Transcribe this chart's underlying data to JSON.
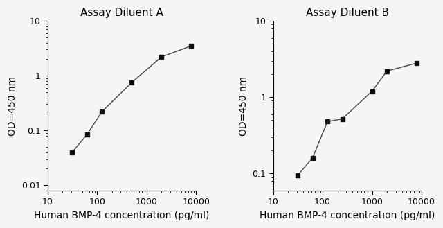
{
  "plot_A": {
    "title": "Assay Diluent A",
    "x": [
      31.25,
      62.5,
      125,
      500,
      2000,
      8000
    ],
    "y": [
      0.04,
      0.085,
      0.22,
      0.75,
      2.2,
      3.5
    ],
    "xlim": [
      10,
      10000
    ],
    "ylim": [
      0.008,
      10
    ],
    "yticks": [
      0.01,
      0.1,
      1,
      10
    ],
    "ytick_labels": [
      "0.01",
      "0.1",
      "1",
      "10"
    ],
    "xticks": [
      10,
      100,
      1000,
      10000
    ],
    "xtick_labels": [
      "10",
      "100",
      "1000",
      "10000"
    ],
    "xlabel": "Human BMP-4 concentration (pg/ml)",
    "ylabel": "OD=450 nm"
  },
  "plot_B": {
    "title": "Assay Diluent B",
    "x": [
      31.25,
      62.5,
      125,
      250,
      1000,
      2000,
      8000
    ],
    "y": [
      0.095,
      0.16,
      0.48,
      0.52,
      1.2,
      2.2,
      2.8
    ],
    "xlim": [
      10,
      10000
    ],
    "ylim": [
      0.06,
      10
    ],
    "yticks": [
      0.1,
      1,
      10
    ],
    "ytick_labels": [
      "0.1",
      "1",
      "10"
    ],
    "xticks": [
      10,
      100,
      1000,
      10000
    ],
    "xtick_labels": [
      "10",
      "100",
      "1000",
      "10000"
    ],
    "xlabel": "Human BMP-4 concentration (pg/ml)",
    "ylabel": "OD=450 nm"
  },
  "line_color": "#444444",
  "marker": "s",
  "marker_size": 4.5,
  "marker_facecolor": "#111111",
  "background_color": "#f5f5f5",
  "title_fontsize": 11,
  "label_fontsize": 10,
  "tick_fontsize": 9
}
